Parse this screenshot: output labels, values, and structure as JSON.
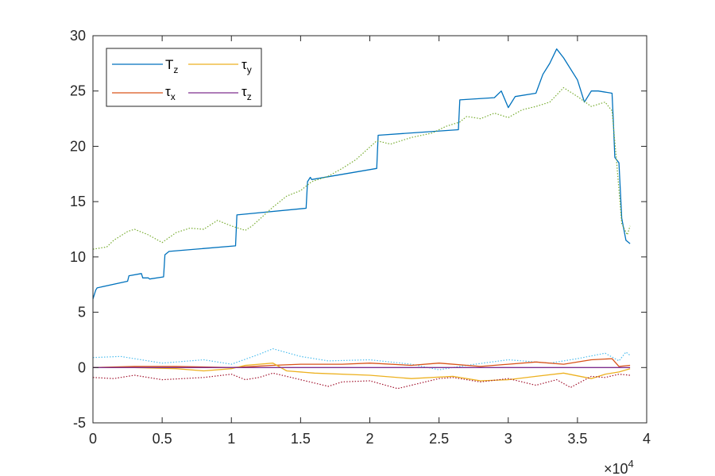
{
  "chart_data": {
    "type": "line",
    "title": "",
    "xlabel": "",
    "ylabel": "",
    "xlim": [
      0,
      40000
    ],
    "ylim": [
      -5,
      30
    ],
    "x_ticks": [
      0,
      5000,
      10000,
      15000,
      20000,
      25000,
      30000,
      35000,
      40000
    ],
    "x_tick_labels": [
      "0",
      "0.5",
      "1",
      "1.5",
      "2",
      "2.5",
      "3",
      "3.5",
      "4"
    ],
    "x_exponent": {
      "base": "×10",
      "power": "4"
    },
    "y_ticks": [
      -5,
      0,
      5,
      10,
      15,
      20,
      25,
      30
    ],
    "y_tick_labels": [
      "-5",
      "0",
      "5",
      "10",
      "15",
      "20",
      "25",
      "30"
    ],
    "grid": false,
    "legend_position": "top-left",
    "legend": [
      {
        "symbol": "T",
        "sub": "z",
        "color": "#0072BD"
      },
      {
        "symbol": "τ",
        "sub": "y",
        "color": "#EDB120"
      },
      {
        "symbol": "τ",
        "sub": "x",
        "color": "#D95319"
      },
      {
        "symbol": "τ",
        "sub": "z",
        "color": "#7E2F8E"
      }
    ],
    "series": [
      {
        "name": "T_z",
        "color": "#0072BD",
        "style": "solid",
        "x": [
          0,
          200,
          300,
          2500,
          2600,
          3500,
          3600,
          4000,
          4100,
          5100,
          5200,
          5400,
          5500,
          10300,
          10400,
          15400,
          15500,
          15700,
          15800,
          20500,
          20600,
          26400,
          26500,
          29000,
          29500,
          30000,
          30500,
          32000,
          32500,
          33000,
          33500,
          34000,
          35000,
          35500,
          36000,
          36500,
          37500,
          37600,
          37700,
          38000,
          38200,
          38500,
          38800
        ],
        "y": [
          6.2,
          7.0,
          7.2,
          7.8,
          8.3,
          8.5,
          8.1,
          8.1,
          8.0,
          8.2,
          10.2,
          10.4,
          10.5,
          11.0,
          13.8,
          14.4,
          16.8,
          17.2,
          17.0,
          18.0,
          21.0,
          21.5,
          24.2,
          24.4,
          25.0,
          23.5,
          24.5,
          24.8,
          26.5,
          27.5,
          28.8,
          28.0,
          26.0,
          24.0,
          25.0,
          25.0,
          24.8,
          22.0,
          19.0,
          18.5,
          13.5,
          11.5,
          11.2
        ]
      },
      {
        "name": "",
        "color": "#77AC30",
        "style": "dotted",
        "x": [
          0,
          1000,
          1500,
          2500,
          3000,
          4000,
          5000,
          6000,
          7000,
          8000,
          9000,
          10000,
          11000,
          11500,
          13000,
          14000,
          15000,
          15800,
          17000,
          18000,
          19000,
          20500,
          21500,
          23000,
          24500,
          25500,
          26500,
          27000,
          28000,
          29000,
          30000,
          31000,
          32000,
          33000,
          34000,
          35000,
          36000,
          37000,
          37500,
          37800,
          38200,
          38600,
          38800
        ],
        "y": [
          10.7,
          10.9,
          11.5,
          12.3,
          12.5,
          12.0,
          11.3,
          12.2,
          12.6,
          12.5,
          13.3,
          12.8,
          12.4,
          12.8,
          14.5,
          15.5,
          16.0,
          16.8,
          17.3,
          18.0,
          18.8,
          20.5,
          20.2,
          20.8,
          21.2,
          21.8,
          22.2,
          22.7,
          22.5,
          23.0,
          22.6,
          23.3,
          23.6,
          24.0,
          25.3,
          24.5,
          23.6,
          24.0,
          23.2,
          19.0,
          13.0,
          12.0,
          12.8
        ]
      },
      {
        "name": "",
        "color": "#4DBEEE",
        "style": "dotted",
        "x": [
          0,
          2000,
          5000,
          8000,
          10000,
          12000,
          13000,
          15000,
          17000,
          20000,
          23000,
          25000,
          27000,
          30000,
          33000,
          35000,
          37000,
          38000,
          38500,
          38800
        ],
        "y": [
          0.9,
          1.0,
          0.4,
          0.7,
          0.3,
          1.2,
          1.7,
          1.0,
          0.6,
          0.7,
          0.3,
          -0.2,
          0.2,
          0.7,
          0.4,
          0.8,
          1.3,
          0.6,
          1.4,
          1.1
        ]
      },
      {
        "name": "τ_x",
        "color": "#D95319",
        "style": "solid",
        "x": [
          0,
          3000,
          6000,
          10000,
          13000,
          15000,
          18000,
          20000,
          23000,
          25000,
          28000,
          30000,
          32000,
          34000,
          36000,
          37500,
          38000,
          38800
        ],
        "y": [
          0.0,
          0.1,
          0.1,
          0.0,
          0.2,
          0.3,
          0.3,
          0.4,
          0.2,
          0.4,
          0.1,
          0.3,
          0.5,
          0.3,
          0.7,
          0.8,
          0.1,
          0.2
        ]
      },
      {
        "name": "τ_y",
        "color": "#EDB120",
        "style": "solid",
        "x": [
          0,
          3000,
          6000,
          8000,
          10000,
          11000,
          12000,
          13000,
          14000,
          16000,
          20000,
          23000,
          26000,
          28000,
          30000,
          32000,
          34000,
          36000,
          37000,
          38000,
          38800
        ],
        "y": [
          0.0,
          0.0,
          -0.1,
          -0.3,
          -0.1,
          0.2,
          0.3,
          0.4,
          -0.3,
          -0.5,
          -0.7,
          -1.0,
          -0.8,
          -1.2,
          -1.1,
          -0.8,
          -0.5,
          -1.0,
          -0.6,
          -0.4,
          -0.1
        ]
      },
      {
        "name": "",
        "color": "#A2142F",
        "style": "dotted",
        "x": [
          0,
          1500,
          3000,
          5000,
          8000,
          10000,
          11000,
          12000,
          13000,
          14000,
          16000,
          17000,
          18000,
          20000,
          22000,
          24000,
          25000,
          26000,
          28000,
          30000,
          32000,
          33500,
          34500,
          36000,
          37000,
          38000,
          38800
        ],
        "y": [
          -0.9,
          -1.0,
          -0.7,
          -1.1,
          -0.9,
          -0.6,
          -1.1,
          -0.9,
          -0.5,
          -0.8,
          -1.4,
          -1.7,
          -1.3,
          -1.2,
          -1.9,
          -1.3,
          -1.0,
          -0.9,
          -1.3,
          -1.0,
          -1.6,
          -1.1,
          -1.8,
          -0.8,
          -0.9,
          -0.6,
          -0.7
        ]
      },
      {
        "name": "τ_z",
        "color": "#7E2F8E",
        "style": "solid",
        "x": [
          0,
          38800
        ],
        "y": [
          0.0,
          0.0
        ]
      }
    ]
  }
}
